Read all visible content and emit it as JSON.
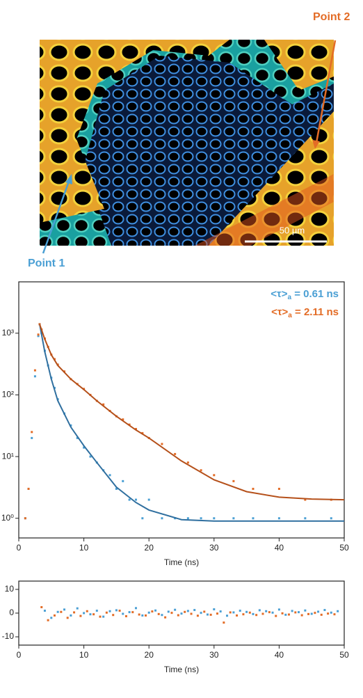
{
  "image": {
    "labels": [
      "Point 1",
      "Point 2"
    ],
    "scale_bar": "50 µm"
  },
  "chart_data": [
    {
      "type": "scatter",
      "log_y": true,
      "annotations": [
        {
          "text": "<τ>",
          "sub": "a",
          "rest": " = 0.61 ns",
          "color": "#4a9fd4"
        },
        {
          "text": "<τ>",
          "sub": "a",
          "rest": " = 2.11 ns",
          "color": "#e36c26"
        }
      ],
      "x_label": "Time (ns)",
      "xlim": [
        0,
        50
      ],
      "xticks": [
        0,
        10,
        20,
        30,
        40,
        50
      ],
      "ylim": [
        0.48,
        6800
      ],
      "yticks": [
        {
          "value": 1,
          "label": "10⁰"
        },
        {
          "value": 10,
          "label": "10¹"
        },
        {
          "value": 100,
          "label": "10²"
        },
        {
          "value": 1000,
          "label": "10³"
        }
      ],
      "series": [
        {
          "mode": "markers",
          "color": "#4a9fd4",
          "x": [
            1,
            1.5,
            2,
            2.5,
            3,
            3.2,
            3.5,
            4,
            4.5,
            5,
            5.5,
            6,
            7,
            8,
            9,
            10,
            11,
            12,
            13,
            14,
            15,
            16,
            17,
            18,
            19,
            20,
            22,
            24,
            26,
            28,
            30,
            33,
            36,
            40,
            44,
            48
          ],
          "values": [
            1,
            3,
            20,
            200,
            900,
            1400,
            1000,
            520,
            300,
            190,
            130,
            85,
            50,
            32,
            20,
            14,
            10,
            8,
            6,
            5,
            3,
            4,
            2,
            2,
            1,
            2,
            1,
            1,
            1,
            1,
            1,
            1,
            1,
            1,
            1,
            1
          ]
        },
        {
          "mode": "markers",
          "color": "#e36c26",
          "x": [
            1,
            1.5,
            2,
            2.5,
            3,
            3.2,
            3.5,
            4,
            4.5,
            5,
            5.5,
            6,
            7,
            8,
            9,
            10,
            11,
            12,
            13,
            14,
            15,
            16,
            17,
            18,
            19,
            20,
            22,
            24,
            26,
            28,
            30,
            33,
            36,
            40,
            44,
            48
          ],
          "values": [
            1,
            3,
            25,
            250,
            950,
            1400,
            1150,
            820,
            600,
            450,
            380,
            310,
            240,
            180,
            150,
            125,
            100,
            80,
            70,
            55,
            45,
            40,
            33,
            28,
            24,
            20,
            16,
            11,
            8,
            6,
            5,
            4,
            3,
            3,
            2,
            2
          ]
        },
        {
          "mode": "line",
          "color": "#2f6f9f",
          "x": [
            3.2,
            4,
            5,
            6,
            8,
            10,
            12,
            15,
            18,
            20,
            25,
            30,
            35,
            40,
            45,
            50
          ],
          "values": [
            1400,
            500,
            180,
            80,
            30,
            15,
            8,
            3.2,
            1.8,
            1.36,
            0.95,
            0.9,
            0.9,
            0.9,
            0.9,
            0.9
          ]
        },
        {
          "mode": "line",
          "color": "#b5501a",
          "x": [
            3.2,
            4,
            5,
            6,
            8,
            10,
            12,
            15,
            18,
            20,
            25,
            30,
            35,
            40,
            45,
            50
          ],
          "values": [
            1400,
            800,
            446,
            300,
            180,
            122,
            80,
            45,
            27,
            20,
            8.5,
            4.2,
            2.7,
            2.2,
            2.05,
            2.0
          ]
        }
      ]
    },
    {
      "type": "scatter",
      "log_y": false,
      "x_label": "Time (ns)",
      "xlim": [
        0,
        50
      ],
      "xticks": [
        0,
        10,
        20,
        30,
        40,
        50
      ],
      "ylim": [
        -13.5,
        13.5
      ],
      "yticks": [
        -10,
        0,
        10
      ],
      "series": [
        {
          "mode": "markers",
          "color": "#e36c26",
          "x": [
            3.5,
            4.5,
            5.5,
            6.5,
            7.5,
            8.5,
            9.5,
            10.5,
            11.5,
            12.5,
            13.5,
            14.5,
            15.5,
            16.5,
            17.5,
            18.5,
            19.5,
            20.5,
            21.5,
            22.5,
            23.5,
            24.5,
            25.5,
            26.5,
            27.5,
            28.5,
            29.5,
            30.5,
            31.5,
            32.5,
            33.5,
            34.5,
            35.5,
            36.5,
            37.5,
            38.5,
            39.5,
            40.5,
            41.5,
            42.5,
            43.5,
            44.5,
            45.5,
            46.5,
            47.5,
            48.5
          ],
          "values": [
            2.5,
            -3,
            -1,
            0.5,
            -2,
            0.3,
            -1.2,
            0.8,
            -0.5,
            -1.5,
            0.2,
            -0.8,
            1,
            -1.3,
            0.4,
            -0.6,
            -1,
            0.7,
            -0.4,
            -1.8,
            0.1,
            -0.9,
            0.5,
            -0.3,
            -1.1,
            0.6,
            -0.7,
            -0.2,
            -4,
            0.3,
            -1,
            -0.5,
            0.2,
            -0.8,
            -0.3,
            0.4,
            -1.2,
            -0.1,
            -0.6,
            0.3,
            -0.9,
            -0.4,
            0.1,
            -0.7,
            -0.2,
            -0.5
          ]
        },
        {
          "mode": "markers",
          "color": "#4a9fd4",
          "x": [
            4,
            5,
            6,
            7,
            8,
            9,
            10,
            11,
            12,
            13,
            14,
            15,
            16,
            17,
            18,
            19,
            20,
            21,
            22,
            23,
            24,
            25,
            26,
            27,
            28,
            29,
            30,
            31,
            32,
            33,
            34,
            35,
            36,
            37,
            38,
            39,
            40,
            41,
            42,
            43,
            44,
            45,
            46,
            47,
            48,
            49
          ],
          "values": [
            1,
            -2,
            0.5,
            1.5,
            -1,
            2,
            0,
            -0.5,
            1,
            -1.5,
            0.8,
            1.2,
            -0.3,
            0.4,
            2.1,
            -1,
            0.2,
            1.1,
            -0.8,
            0.6,
            1.4,
            -0.2,
            0.9,
            1.3,
            0.1,
            -0.6,
            1.6,
            0.7,
            -1.1,
            0.3,
            1,
            0.5,
            -0.4,
            1.2,
            0.8,
            0.2,
            1.5,
            -0.7,
            0.9,
            0.4,
            1.1,
            -0.3,
            0.6,
            1.3,
            0.2,
            0.8
          ]
        }
      ]
    }
  ]
}
